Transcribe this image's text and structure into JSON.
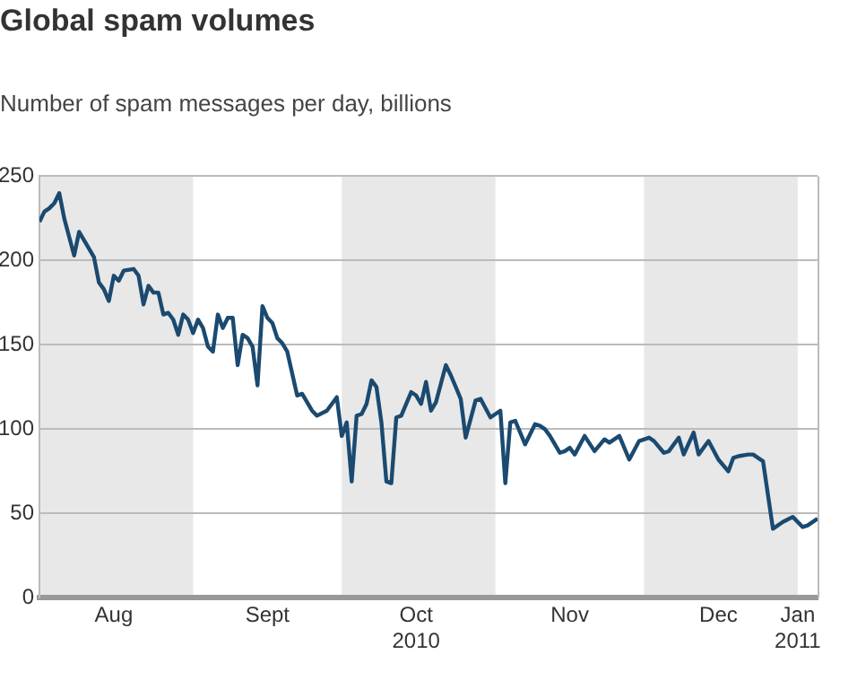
{
  "chart_data": {
    "type": "line",
    "title": "Global spam volumes",
    "subtitle": "Number of spam messages per day, billions",
    "xlim": [
      "2010-08-01",
      "2011-01-05"
    ],
    "xticks": [
      {
        "value": "2010-08-16",
        "label": "Aug"
      },
      {
        "value": "2010-09-16",
        "label": "Sept"
      },
      {
        "value": "2010-10-16",
        "label": "Oct\n2010"
      },
      {
        "value": "2010-11-16",
        "label": "Nov"
      },
      {
        "value": "2010-12-16",
        "label": "Dec"
      },
      {
        "value": "2011-01-01",
        "label": "Jan\n2011"
      }
    ],
    "ylim": [
      0,
      250
    ],
    "yticks": [
      0,
      50,
      100,
      150,
      200,
      250
    ],
    "grid": "y",
    "legend": false,
    "marker": "none",
    "line_style": "solid",
    "bands": [
      {
        "axis": "x",
        "from": "2010-08-01",
        "to": "2010-09-01",
        "color": "#e8e8e8"
      },
      {
        "axis": "x",
        "from": "2010-10-01",
        "to": "2010-11-01",
        "color": "#e8e8e8"
      },
      {
        "axis": "x",
        "from": "2010-12-01",
        "to": "2011-01-01",
        "color": "#e8e8e8"
      }
    ],
    "series": [
      {
        "color": "#1b4a70",
        "x": [
          "2010-08-01",
          "2010-08-02",
          "2010-08-03",
          "2010-08-04",
          "2010-08-05",
          "2010-08-06",
          "2010-08-08",
          "2010-08-09",
          "2010-08-11",
          "2010-08-12",
          "2010-08-13",
          "2010-08-14",
          "2010-08-15",
          "2010-08-16",
          "2010-08-17",
          "2010-08-18",
          "2010-08-20",
          "2010-08-21",
          "2010-08-22",
          "2010-08-23",
          "2010-08-24",
          "2010-08-25",
          "2010-08-26",
          "2010-08-27",
          "2010-08-28",
          "2010-08-29",
          "2010-08-30",
          "2010-08-31",
          "2010-09-01",
          "2010-09-02",
          "2010-09-03",
          "2010-09-04",
          "2010-09-05",
          "2010-09-06",
          "2010-09-07",
          "2010-09-08",
          "2010-09-09",
          "2010-09-10",
          "2010-09-11",
          "2010-09-12",
          "2010-09-13",
          "2010-09-14",
          "2010-09-15",
          "2010-09-16",
          "2010-09-17",
          "2010-09-18",
          "2010-09-19",
          "2010-09-20",
          "2010-09-22",
          "2010-09-23",
          "2010-09-25",
          "2010-09-26",
          "2010-09-28",
          "2010-09-30",
          "2010-10-01",
          "2010-10-02",
          "2010-10-03",
          "2010-10-04",
          "2010-10-05",
          "2010-10-06",
          "2010-10-07",
          "2010-10-08",
          "2010-10-09",
          "2010-10-10",
          "2010-10-11",
          "2010-10-12",
          "2010-10-13",
          "2010-10-15",
          "2010-10-16",
          "2010-10-17",
          "2010-10-18",
          "2010-10-19",
          "2010-10-20",
          "2010-10-22",
          "2010-10-23",
          "2010-10-25",
          "2010-10-26",
          "2010-10-28",
          "2010-10-29",
          "2010-10-31",
          "2010-11-01",
          "2010-11-02",
          "2010-11-03",
          "2010-11-04",
          "2010-11-05",
          "2010-11-07",
          "2010-11-09",
          "2010-11-10",
          "2010-11-11",
          "2010-11-12",
          "2010-11-14",
          "2010-11-15",
          "2010-11-16",
          "2010-11-17",
          "2010-11-19",
          "2010-11-21",
          "2010-11-23",
          "2010-11-24",
          "2010-11-26",
          "2010-11-28",
          "2010-11-30",
          "2010-12-02",
          "2010-12-03",
          "2010-12-05",
          "2010-12-06",
          "2010-12-08",
          "2010-12-09",
          "2010-12-11",
          "2010-12-12",
          "2010-12-14",
          "2010-12-16",
          "2010-12-18",
          "2010-12-19",
          "2010-12-20",
          "2010-12-22",
          "2010-12-23",
          "2010-12-25",
          "2010-12-27",
          "2010-12-29",
          "2010-12-31",
          "2011-01-02",
          "2011-01-03",
          "2011-01-05"
        ],
        "values": [
          223,
          229,
          231,
          234,
          240,
          225,
          203,
          217,
          207,
          202,
          187,
          183,
          176,
          191,
          188,
          194,
          195,
          191,
          174,
          185,
          181,
          181,
          168,
          169,
          165,
          156,
          168,
          165,
          157,
          165,
          160,
          149,
          146,
          168,
          160,
          166,
          166,
          138,
          156,
          154,
          149,
          126,
          173,
          166,
          163,
          154,
          151,
          146,
          120,
          121,
          111,
          108,
          111,
          119,
          96,
          104,
          69,
          108,
          109,
          115,
          129,
          125,
          104,
          69,
          68,
          107,
          108,
          122,
          120,
          115,
          128,
          111,
          116,
          138,
          132,
          118,
          95,
          117,
          118,
          107,
          109,
          111,
          68,
          104,
          105,
          91,
          103,
          102,
          100,
          96,
          86,
          87,
          89,
          85,
          96,
          87,
          94,
          92,
          96,
          82,
          93,
          95,
          93,
          86,
          87,
          95,
          85,
          98,
          85,
          93,
          82,
          75,
          83,
          84,
          85,
          85,
          81,
          41,
          45,
          48,
          42,
          43,
          47
        ]
      }
    ]
  }
}
